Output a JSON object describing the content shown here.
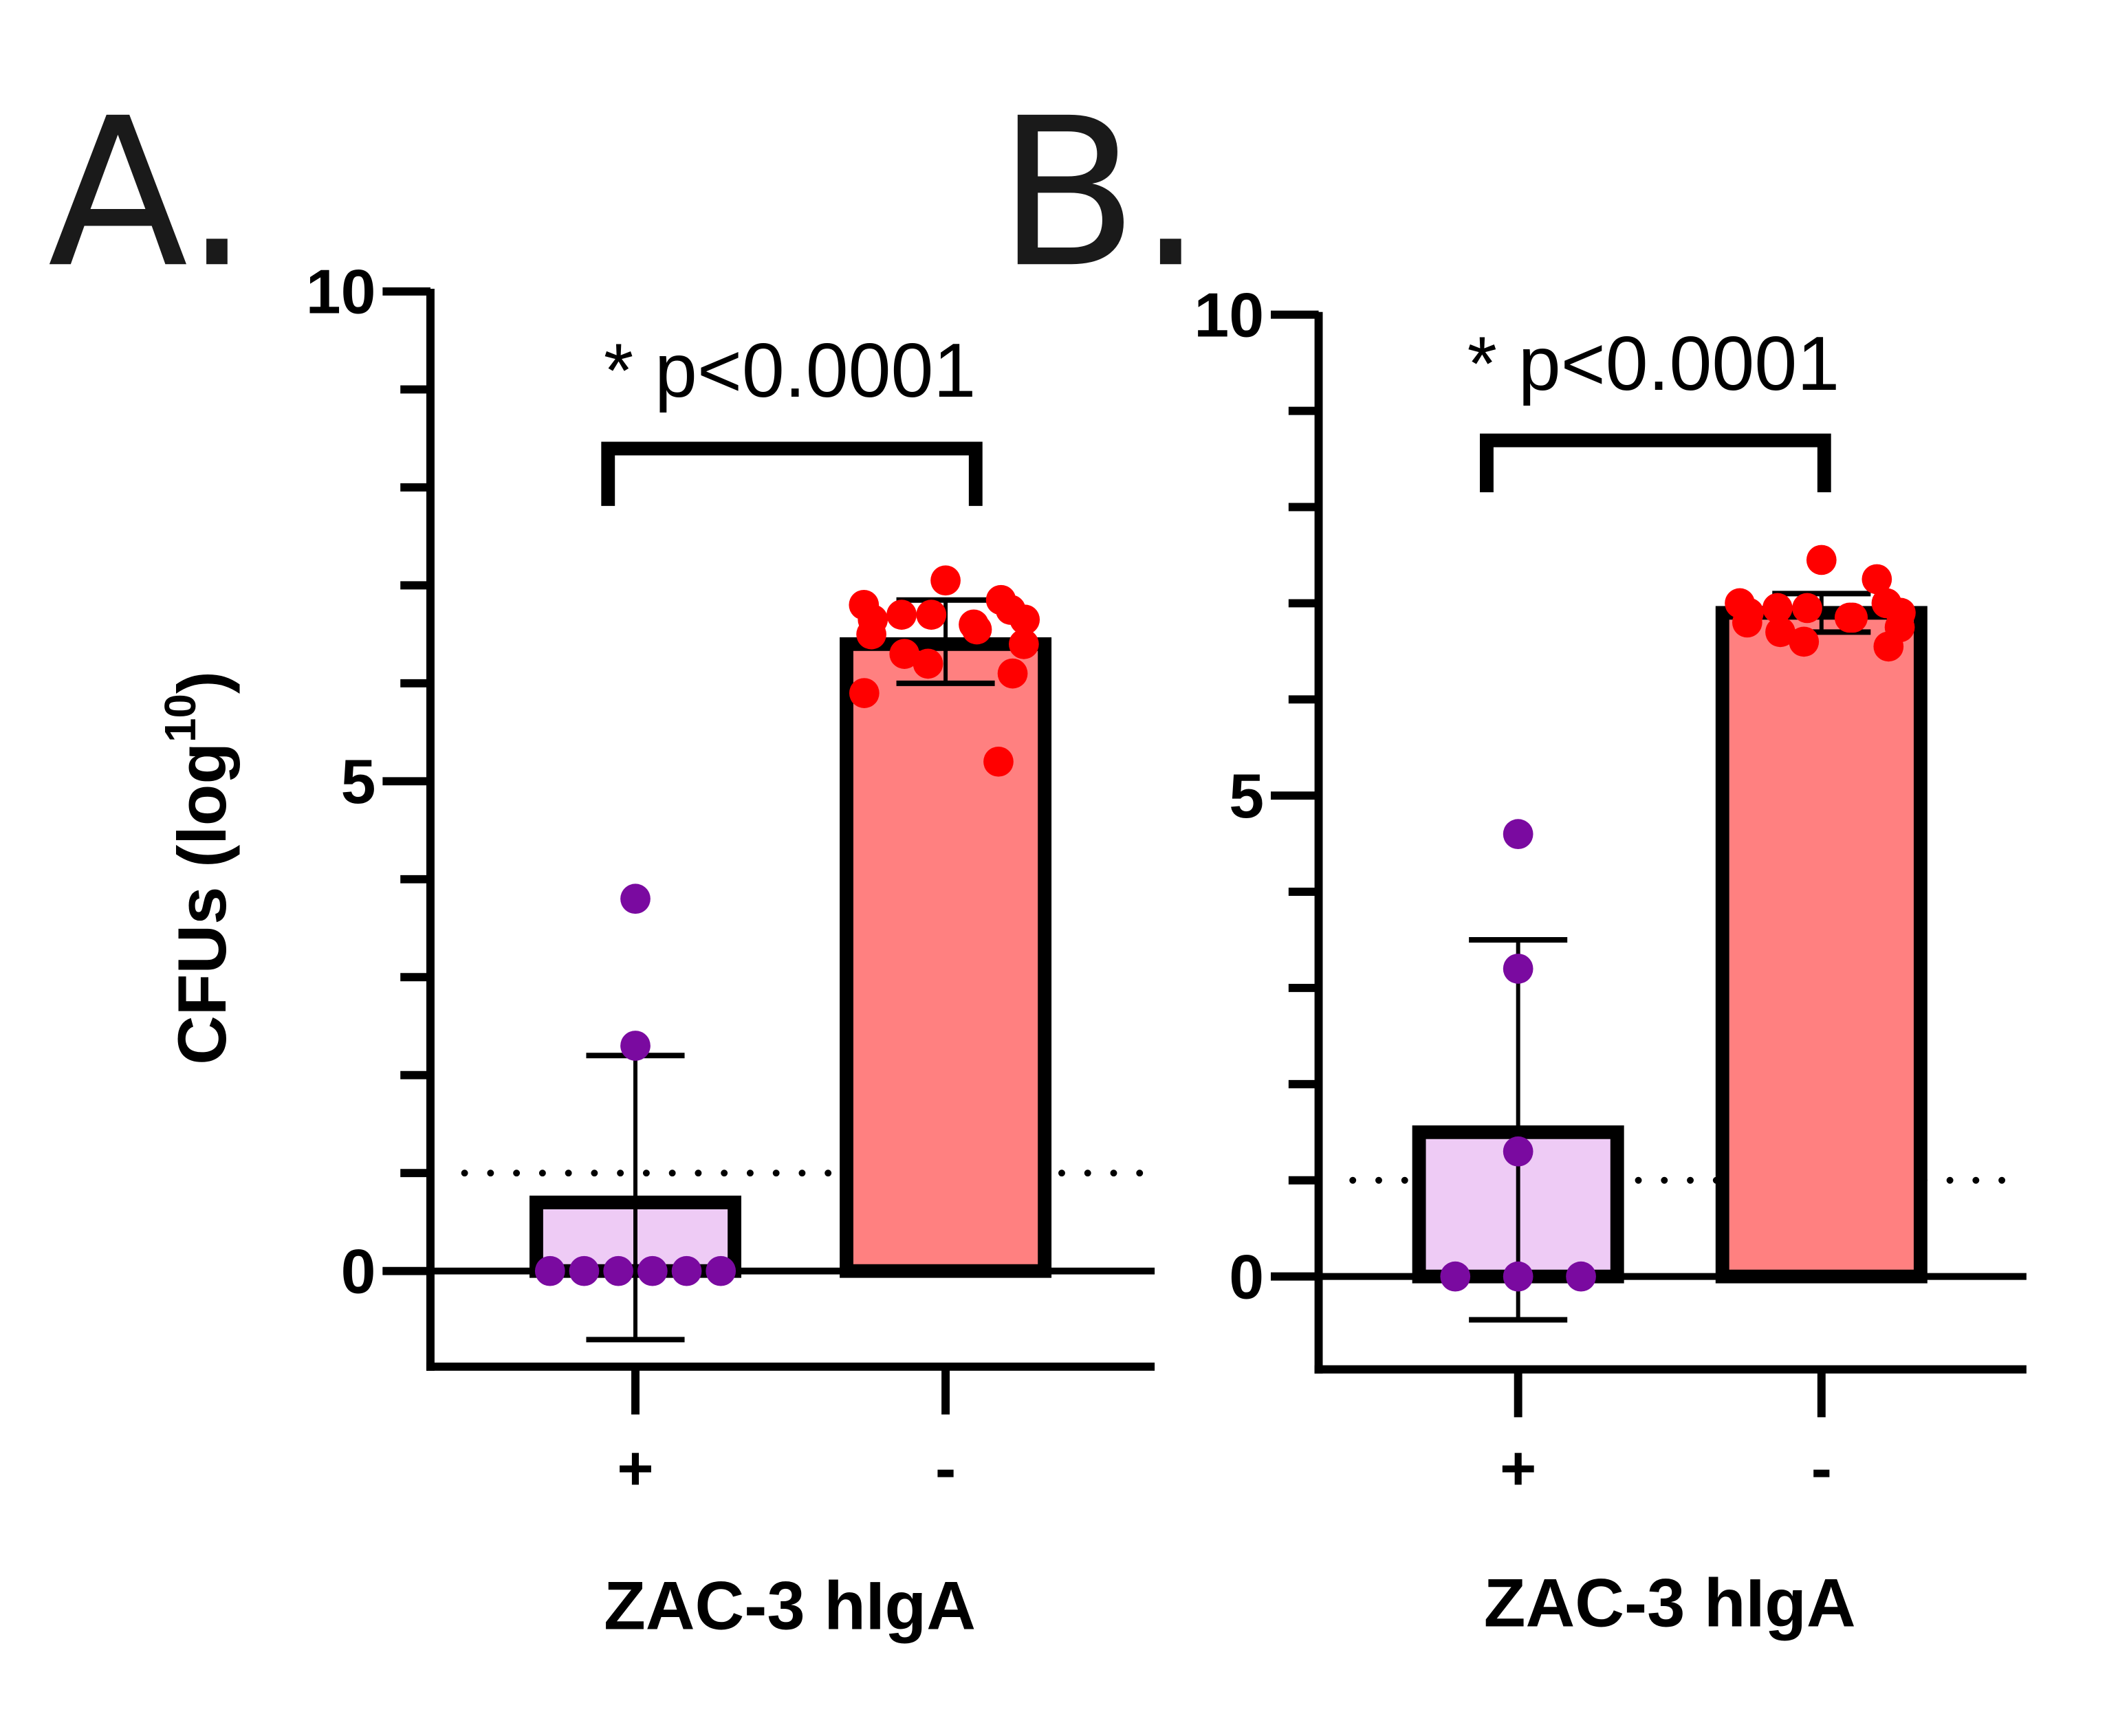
{
  "chart_data": [
    {
      "panel": "A.",
      "type": "bar",
      "ylabel": "CFUs (log",
      "ylabel_sup": "10",
      "ylabel_close": ")",
      "xlabel": "ZAC-3 hIgA",
      "ylim": [
        -1,
        10
      ],
      "yticks": [
        0,
        5,
        10
      ],
      "minor_ticks": [
        1,
        2,
        3,
        4,
        6,
        7,
        8,
        9
      ],
      "detection_limit": 1,
      "categories": [
        "+",
        "-"
      ],
      "significance": "* p<0.0001",
      "series": [
        {
          "name": "+",
          "mean": 0.7,
          "sd_upper": 2.2,
          "sd_lower": -0.7,
          "fill": "#eecbf5",
          "point_color": "#7a0aa0",
          "points": [
            0,
            0,
            0,
            0,
            0,
            0,
            2.3,
            3.8
          ]
        },
        {
          "name": "-",
          "mean": 6.4,
          "sd_upper": 6.85,
          "sd_lower": 6.0,
          "fill": "#ff8080",
          "point_color": "#ff0000",
          "points": [
            7.05,
            6.85,
            6.8,
            6.75,
            6.7,
            6.7,
            6.65,
            6.65,
            6.6,
            6.55,
            6.5,
            6.4,
            6.3,
            6.2,
            6.1,
            5.9,
            5.2
          ]
        }
      ]
    },
    {
      "panel": "B.",
      "type": "bar",
      "xlabel": "ZAC-3 hIgA",
      "ylim": [
        -1,
        10
      ],
      "yticks": [
        0,
        5,
        10
      ],
      "minor_ticks": [
        1,
        2,
        3,
        4,
        6,
        7,
        8,
        9
      ],
      "detection_limit": 1,
      "categories": [
        "+",
        "-"
      ],
      "significance": "* p<0.0001",
      "series": [
        {
          "name": "+",
          "mean": 1.5,
          "sd_upper": 3.5,
          "sd_lower": -0.45,
          "fill": "#eecbf5",
          "point_color": "#7a0aa0",
          "points": [
            0,
            0,
            0,
            1.3,
            3.2,
            4.6
          ]
        },
        {
          "name": "-",
          "mean": 6.9,
          "sd_upper": 7.1,
          "sd_lower": 6.7,
          "fill": "#ff8080",
          "point_color": "#ff0000",
          "points": [
            7.45,
            7.25,
            7.0,
            7.0,
            6.95,
            6.95,
            6.9,
            6.9,
            6.85,
            6.85,
            6.8,
            6.75,
            6.7,
            6.6,
            6.55
          ]
        }
      ]
    }
  ]
}
